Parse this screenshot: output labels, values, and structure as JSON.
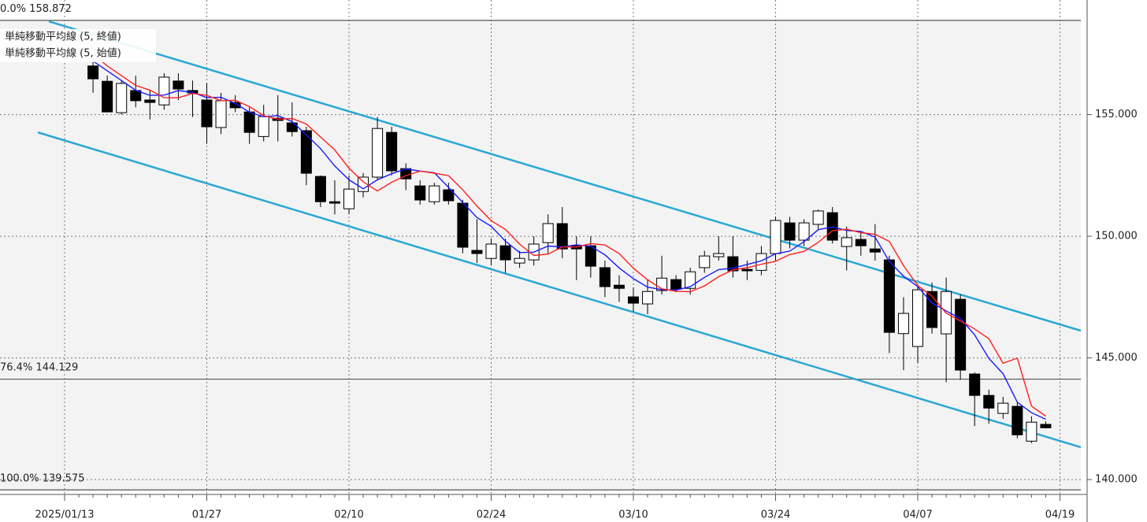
{
  "chart_data": {
    "type": "candlestick",
    "categories": [
      "2025/01/13",
      null,
      null,
      null,
      null,
      null,
      null,
      null,
      null,
      null,
      "01/27",
      null,
      null,
      null,
      null,
      null,
      null,
      null,
      null,
      null,
      "02/10",
      null,
      null,
      null,
      null,
      null,
      null,
      null,
      null,
      null,
      "02/24",
      null,
      null,
      null,
      null,
      null,
      null,
      null,
      null,
      null,
      "03/10",
      null,
      null,
      null,
      null,
      null,
      null,
      null,
      null,
      null,
      "03/24",
      null,
      null,
      null,
      null,
      null,
      null,
      null,
      null,
      null,
      "04/07",
      null,
      null,
      null,
      null,
      null,
      null,
      null,
      null,
      null,
      "04/19"
    ],
    "open": [
      null,
      null,
      157.0,
      156.37,
      155.08,
      155.99,
      155.6,
      155.4,
      156.38,
      155.99,
      155.6,
      154.47,
      155.5,
      155.11,
      154.1,
      154.85,
      154.66,
      154.34,
      152.46,
      151.42,
      151.13,
      151.84,
      152.43,
      154.27,
      152.78,
      152.07,
      151.42,
      151.91,
      151.36,
      149.42,
      149.09,
      149.61,
      148.9,
      149.03,
      149.74,
      150.52,
      149.61,
      149.61,
      148.71,
      147.99,
      147.51,
      147.22,
      147.77,
      148.22,
      147.86,
      148.71,
      149.16,
      149.16,
      148.64,
      148.6,
      149.29,
      150.55,
      149.84,
      150.49,
      150.97,
      149.58,
      149.87,
      149.48,
      149.03,
      146.0,
      145.47,
      147.73,
      145.99,
      147.41,
      144.34,
      143.46,
      142.72,
      143.01,
      141.58,
      142.27,
      null
    ],
    "high": [
      null,
      null,
      157.3,
      156.6,
      156.4,
      156.6,
      156.0,
      156.7,
      156.7,
      156.4,
      156.3,
      155.9,
      155.8,
      155.3,
      155.4,
      155.8,
      155.5,
      154.5,
      152.5,
      152.3,
      152.5,
      152.6,
      154.9,
      154.5,
      153.0,
      152.3,
      152.2,
      152.2,
      151.5,
      150.7,
      149.9,
      149.9,
      149.4,
      150.0,
      150.9,
      151.2,
      150.0,
      150.0,
      149.0,
      148.4,
      147.9,
      148.2,
      149.2,
      148.4,
      148.7,
      149.4,
      150.0,
      150.0,
      149.0,
      149.6,
      150.8,
      150.8,
      150.7,
      151.1,
      151.2,
      150.4,
      150.2,
      150.5,
      149.2,
      147.5,
      148.0,
      148.1,
      148.3,
      147.6,
      144.4,
      143.7,
      143.4,
      143.2,
      142.6,
      142.4,
      null
    ],
    "low": [
      null,
      null,
      155.9,
      155.1,
      155.0,
      155.3,
      154.8,
      155.2,
      155.6,
      154.9,
      153.8,
      154.2,
      155.1,
      153.8,
      153.9,
      153.9,
      154.1,
      152.1,
      151.2,
      150.9,
      150.9,
      151.6,
      152.3,
      152.5,
      151.9,
      151.3,
      151.3,
      151.3,
      149.3,
      148.9,
      148.8,
      148.5,
      148.7,
      148.8,
      149.3,
      149.1,
      148.2,
      148.3,
      147.5,
      147.3,
      146.9,
      146.8,
      147.6,
      147.7,
      147.6,
      148.5,
      149.0,
      148.3,
      148.2,
      148.4,
      149.0,
      149.5,
      149.6,
      150.3,
      149.7,
      148.6,
      149.2,
      149.0,
      145.2,
      144.5,
      144.8,
      146.0,
      144.0,
      144.1,
      142.2,
      142.3,
      142.5,
      141.7,
      141.5,
      142.1,
      null
    ],
    "close": [
      null,
      null,
      156.47,
      155.11,
      156.28,
      155.57,
      155.5,
      156.54,
      156.05,
      155.89,
      154.5,
      155.57,
      155.28,
      154.27,
      154.92,
      154.76,
      154.3,
      152.59,
      151.42,
      151.36,
      151.94,
      152.43,
      154.43,
      152.69,
      152.36,
      151.49,
      152.07,
      151.46,
      149.55,
      149.29,
      149.68,
      149.03,
      149.09,
      149.68,
      150.52,
      149.48,
      149.48,
      148.77,
      147.93,
      147.86,
      147.25,
      147.73,
      148.28,
      147.83,
      148.54,
      149.19,
      149.29,
      148.58,
      148.58,
      149.29,
      150.65,
      149.84,
      150.55,
      151.04,
      149.84,
      149.94,
      149.61,
      149.35,
      146.05,
      146.83,
      147.8,
      146.25,
      147.73,
      144.5,
      143.46,
      142.94,
      143.14,
      141.84,
      142.36,
      142.13,
      null
    ],
    "up_color": "#ffffff",
    "down_color": "#000000",
    "series": [
      {
        "name": "単純移動平均線 (5, 終値)",
        "color": "#1a1aff",
        "values": [
          null,
          null,
          157.2,
          156.8,
          156.4,
          156.0,
          155.79,
          155.8,
          155.99,
          155.91,
          155.7,
          155.71,
          155.46,
          155.1,
          154.91,
          154.96,
          154.71,
          154.17,
          153.6,
          152.89,
          152.32,
          151.95,
          152.32,
          152.57,
          152.77,
          152.68,
          152.61,
          152.01,
          151.39,
          150.77,
          150.41,
          149.8,
          149.33,
          149.35,
          149.6,
          149.56,
          149.65,
          149.59,
          149.24,
          148.7,
          148.26,
          147.91,
          147.81,
          147.79,
          147.93,
          148.31,
          148.63,
          148.69,
          148.84,
          148.99,
          149.28,
          149.39,
          149.78,
          150.27,
          150.38,
          150.24,
          150.2,
          149.96,
          148.96,
          148.36,
          147.93,
          147.26,
          146.93,
          146.62,
          145.95,
          144.98,
          144.35,
          143.18,
          142.75,
          142.48,
          null
        ]
      },
      {
        "name": "単純移動平均線 (5, 始値)",
        "color": "#ff2020",
        "values": [
          null,
          null,
          157.5,
          157.0,
          156.6,
          156.2,
          156.01,
          155.69,
          155.69,
          155.87,
          155.79,
          155.57,
          155.59,
          155.33,
          154.96,
          154.81,
          154.84,
          154.61,
          154.08,
          153.55,
          152.8,
          152.24,
          151.86,
          152.22,
          152.49,
          152.68,
          152.59,
          152.49,
          151.91,
          151.24,
          150.64,
          150.28,
          149.68,
          149.21,
          149.27,
          149.56,
          149.56,
          149.7,
          149.64,
          149.29,
          148.69,
          148.21,
          147.84,
          147.74,
          147.72,
          147.96,
          148.34,
          148.62,
          148.71,
          148.85,
          148.97,
          149.25,
          149.38,
          149.75,
          150.23,
          150.29,
          150.15,
          150.08,
          149.79,
          148.79,
          147.97,
          147.54,
          146.84,
          146.52,
          146.19,
          145.79,
          144.78,
          144.99,
          143.02,
          142.61,
          null
        ]
      }
    ],
    "fib_levels": [
      {
        "label": "0.0%",
        "value": 158.872
      },
      {
        "label": "76.4%",
        "value": 144.129
      },
      {
        "label": "100.0%",
        "value": 139.575
      }
    ],
    "trendlines": [
      {
        "color": "#2aa8d4",
        "x": [
          -1.11,
          71.47
        ],
        "y": [
          158.83,
          146.12
        ]
      },
      {
        "color": "#2aa8d4",
        "x": [
          -1.88,
          71.47
        ],
        "y": [
          154.27,
          141.33
        ]
      }
    ],
    "ylim": [
      139.39,
      159.71
    ],
    "yticks": [
      {
        "value": 140,
        "label": "140.000"
      },
      {
        "value": 145,
        "label": "145.000"
      },
      {
        "value": 150,
        "label": "150.000"
      },
      {
        "value": 155,
        "label": "155.000"
      }
    ],
    "grid": true
  }
}
